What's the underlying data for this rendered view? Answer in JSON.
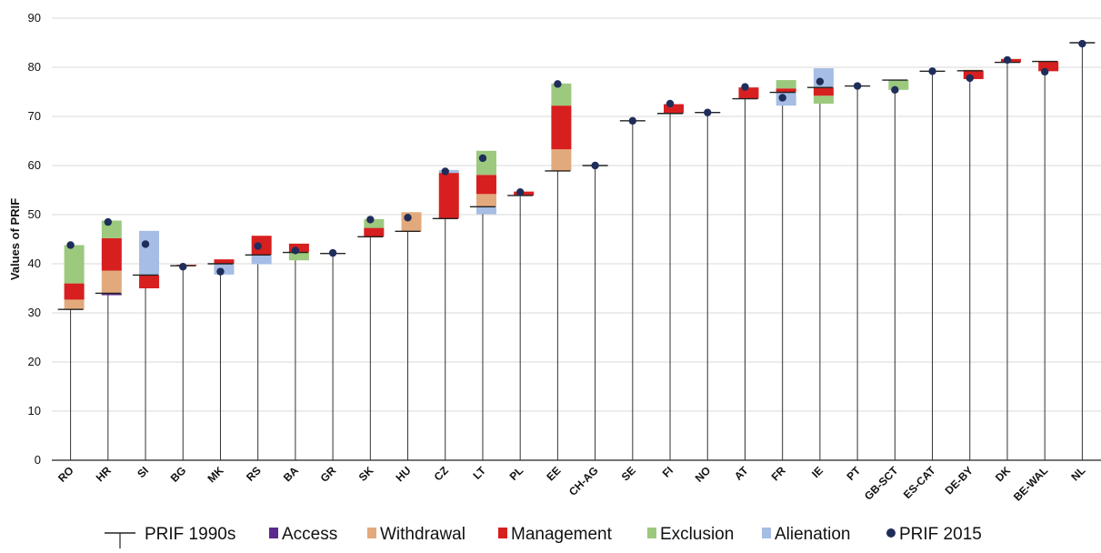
{
  "chart_data": {
    "type": "bar",
    "title": "",
    "xlabel": "",
    "ylabel": "Values of PRIF",
    "ylim": [
      0,
      90
    ],
    "yticks": [
      0,
      10,
      20,
      30,
      40,
      50,
      60,
      70,
      80,
      90
    ],
    "grid": true,
    "legend_position": "bottom",
    "categories": [
      "RO",
      "HR",
      "SI",
      "BG",
      "MK",
      "RS",
      "BA",
      "GR",
      "SK",
      "HU",
      "CZ",
      "LT",
      "PL",
      "EE",
      "CH-AG",
      "SE",
      "FI",
      "NO",
      "AT",
      "FR",
      "IE",
      "PT",
      "GB-SCT",
      "ES-CAT",
      "DE-BY",
      "DK",
      "BE-WAL",
      "NL"
    ],
    "series": [
      {
        "name": "PRIF 1990s",
        "key": "prif1990",
        "color": "#1a1a1a",
        "values": [
          30.7,
          34,
          37.7,
          39.6,
          40,
          41.8,
          42.3,
          42.1,
          45.5,
          46.6,
          49.2,
          51.6,
          53.9,
          58.9,
          60,
          69.1,
          70.6,
          70.8,
          73.6,
          74.9,
          75.9,
          76.2,
          77.4,
          79.2,
          79.3,
          81,
          81.2,
          85
        ]
      },
      {
        "name": "Access",
        "key": "access",
        "color": "#5b2a8c",
        "values": [
          0,
          -0.4,
          0,
          0,
          0,
          0,
          0,
          0,
          0,
          0,
          0,
          0,
          0,
          0,
          0,
          0,
          0,
          0,
          0,
          0,
          0,
          0,
          0,
          0,
          0,
          0,
          0,
          0
        ]
      },
      {
        "name": "Withdrawal",
        "key": "withdrawal",
        "color": "#e2aa7c",
        "values": [
          2,
          4.6,
          0,
          0,
          0,
          0,
          0,
          0,
          0,
          3.9,
          0,
          2.6,
          0,
          4.4,
          0,
          0,
          0,
          0,
          0,
          0,
          0,
          0,
          0,
          0,
          0.2,
          0,
          0,
          0
        ]
      },
      {
        "name": "Management",
        "key": "management",
        "color": "#d71f1f",
        "values": [
          3.3,
          6.6,
          -2.7,
          0.2,
          0.9,
          3.9,
          1.8,
          0,
          1.8,
          0,
          9.3,
          3.9,
          0.8,
          8.9,
          0,
          0,
          1.9,
          0,
          2.3,
          0.8,
          -1.7,
          0,
          0,
          0,
          -1.7,
          0.7,
          -2,
          0
        ]
      },
      {
        "name": "Exclusion",
        "key": "exclusion",
        "color": "#9cc97e",
        "values": [
          7.8,
          3.6,
          0,
          0,
          0,
          0,
          -1.6,
          0,
          1.8,
          0,
          0,
          4.9,
          0,
          4.5,
          0,
          0,
          0,
          0,
          0,
          1.7,
          -1.6,
          0,
          -2,
          0,
          0,
          0,
          0,
          0
        ]
      },
      {
        "name": "Alienation",
        "key": "alienation",
        "color": "#a6bde4",
        "values": [
          0,
          0,
          9,
          0,
          -2.2,
          -1.9,
          0,
          0,
          0,
          0,
          0.6,
          -1.5,
          0,
          0,
          0,
          0,
          0,
          0,
          0,
          -2.7,
          3.9,
          0,
          0,
          0,
          0,
          0,
          0,
          0
        ]
      },
      {
        "name": "PRIF 2015",
        "key": "prif2015",
        "color": "#1f2d5a",
        "values": [
          43.8,
          48.5,
          44,
          39.4,
          38.4,
          43.6,
          42.7,
          42.2,
          49,
          49.4,
          58.8,
          61.5,
          54.6,
          76.6,
          60,
          69.1,
          72.6,
          70.8,
          76,
          73.8,
          77.1,
          76.2,
          75.4,
          79.2,
          77.8,
          81.5,
          79.1,
          84.8
        ]
      }
    ]
  }
}
